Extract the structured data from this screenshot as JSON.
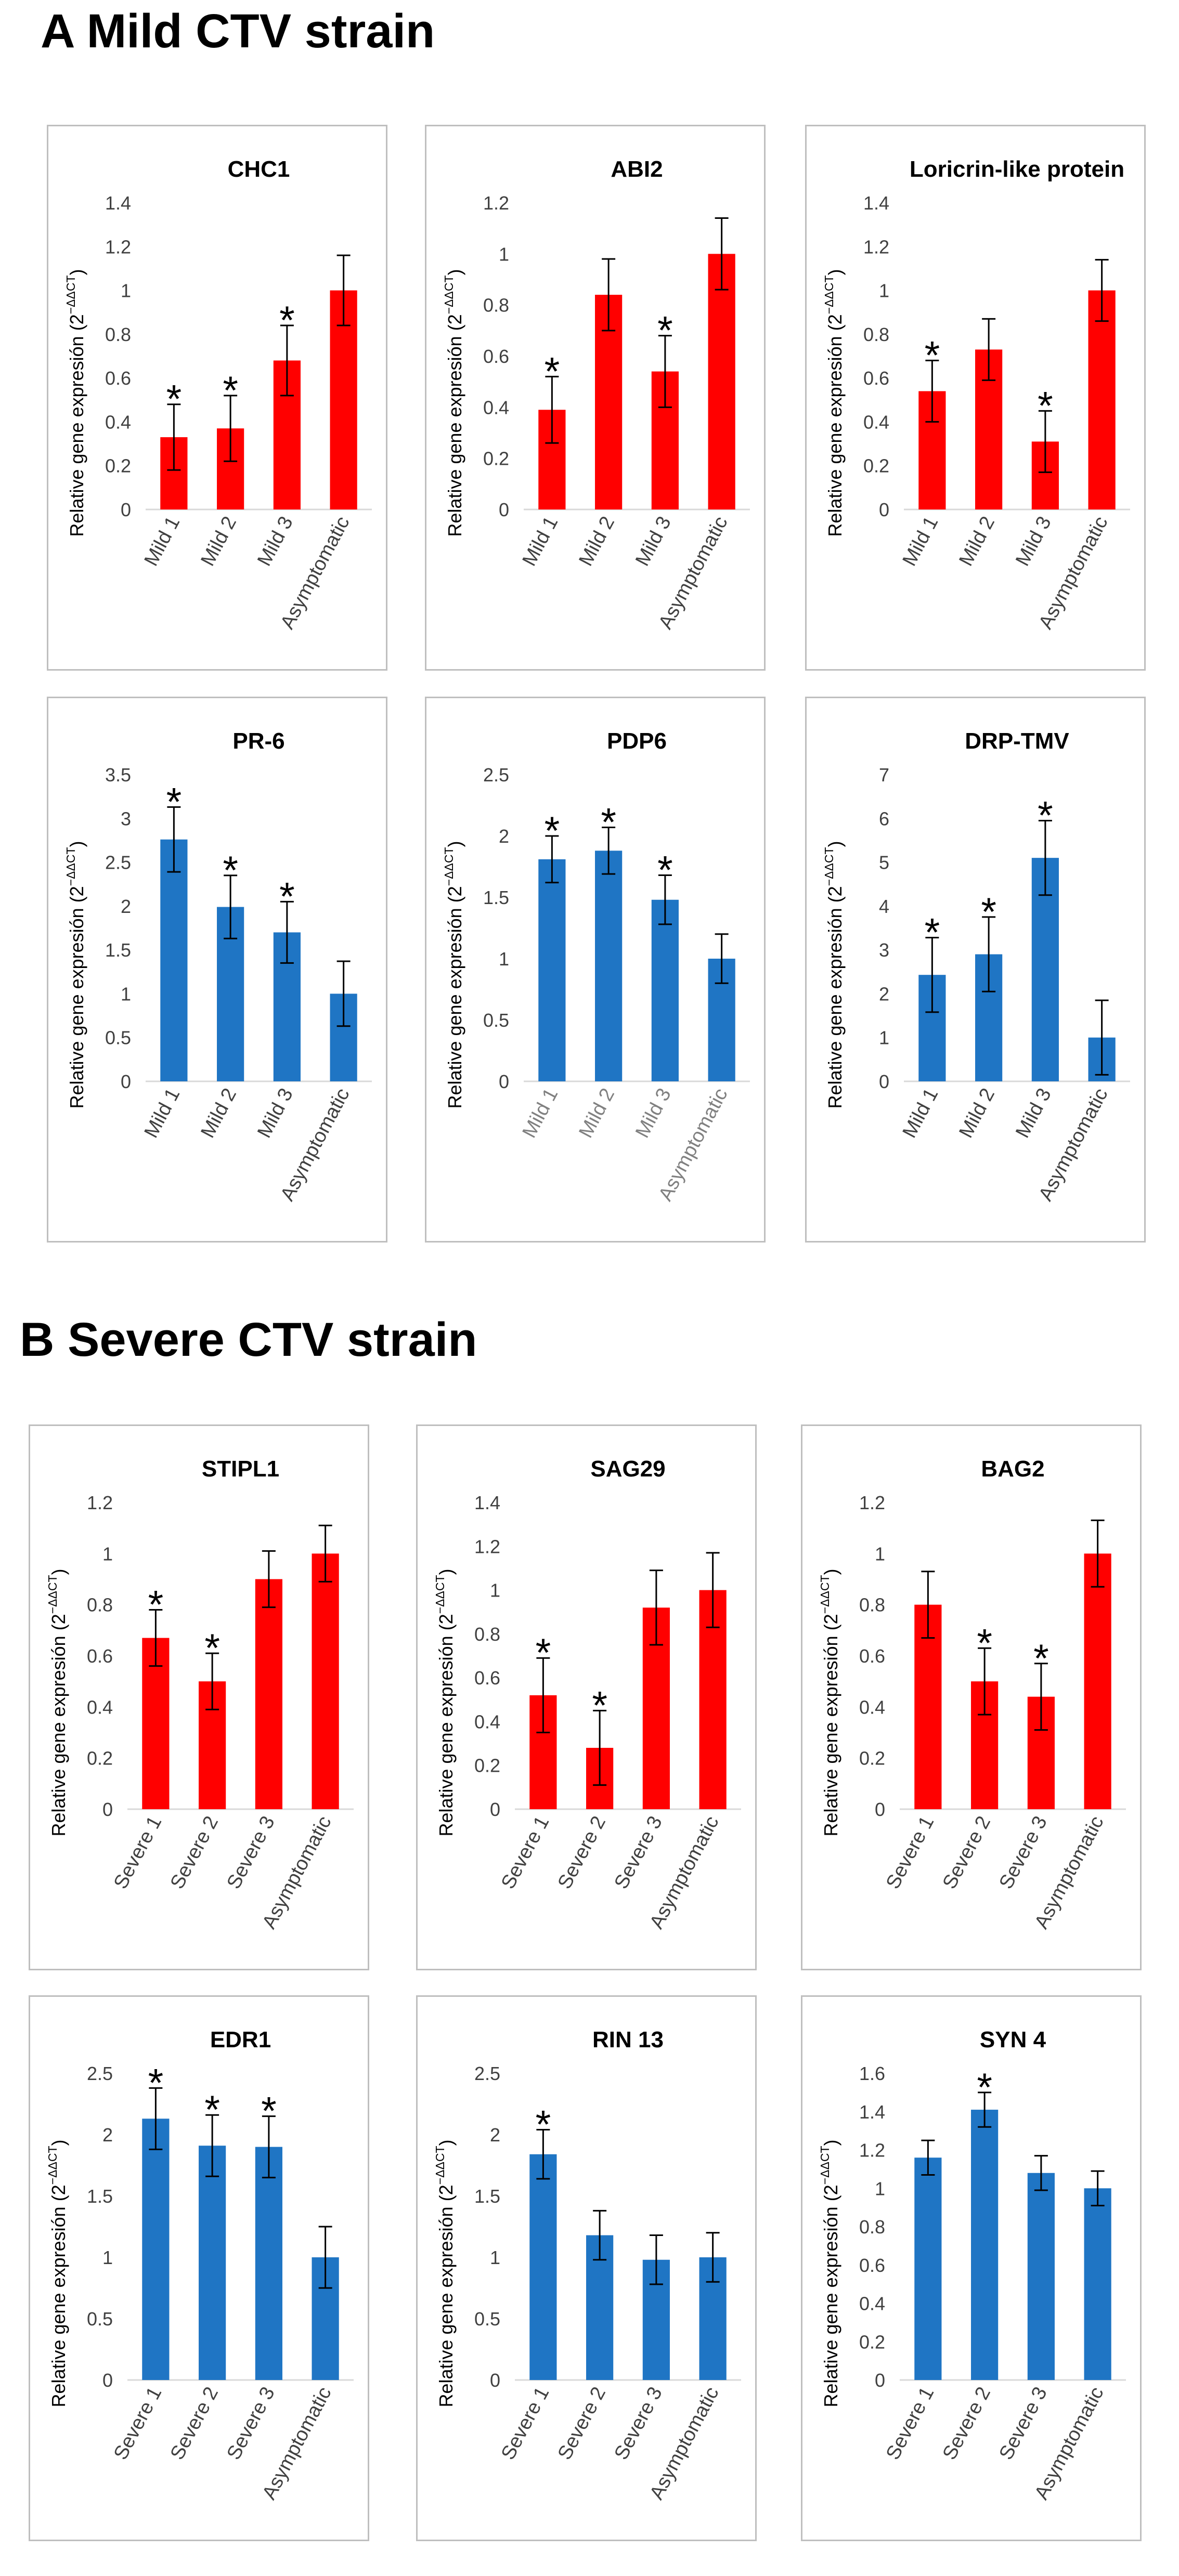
{
  "sections": {
    "a": {
      "label": "A",
      "title": "Mild CTV strain"
    },
    "b": {
      "label": "B",
      "title": "Severe CTV strain"
    }
  },
  "colors": {
    "red": "#ff0000",
    "blue": "#1f75c4",
    "axis": "#d9d9d9",
    "frame": "#bfbfbf"
  },
  "y_axis_label": "Relative gene expresión (2",
  "y_axis_superscript": "−ΔΔCT",
  "significance_marker": "*",
  "chart_data": [
    {
      "type": "bar",
      "title": "CHC1",
      "color": "red",
      "categories": [
        "Mild 1",
        "Mild 2",
        "Mild 3",
        "Asymptomatic"
      ],
      "values": [
        0.33,
        0.37,
        0.68,
        1.0
      ],
      "errors": [
        0.15,
        0.15,
        0.16,
        0.16
      ],
      "significant": [
        true,
        true,
        true,
        false
      ],
      "ylim": [
        0,
        1.4
      ],
      "yticks": [
        "0",
        "0.2",
        "0.4",
        "0.6",
        "0.8",
        "1",
        "1.2",
        "1.4"
      ]
    },
    {
      "type": "bar",
      "title": "ABI2",
      "color": "red",
      "categories": [
        "Mild 1",
        "Mild 2",
        "Mild 3",
        "Asymptomatic"
      ],
      "values": [
        0.39,
        0.84,
        0.54,
        1.0
      ],
      "errors": [
        0.13,
        0.14,
        0.14,
        0.14
      ],
      "significant": [
        true,
        false,
        true,
        false
      ],
      "ylim": [
        0,
        1.2
      ],
      "yticks": [
        "0",
        "0.2",
        "0.4",
        "0.6",
        "0.8",
        "1",
        "1.2"
      ]
    },
    {
      "type": "bar",
      "title": "Loricrin-like protein",
      "color": "red",
      "categories": [
        "Mild 1",
        "Mild 2",
        "Mild 3",
        "Asymptomatic"
      ],
      "values": [
        0.54,
        0.73,
        0.31,
        1.0
      ],
      "errors": [
        0.14,
        0.14,
        0.14,
        0.14
      ],
      "significant": [
        true,
        false,
        true,
        false
      ],
      "ylim": [
        0,
        1.4
      ],
      "yticks": [
        "0",
        "0.2",
        "0.4",
        "0.6",
        "0.8",
        "1",
        "1.2",
        "1.4"
      ]
    },
    {
      "type": "bar",
      "title": "PR-6",
      "color": "blue",
      "categories": [
        "Mild 1",
        "Mild 2",
        "Mild 3",
        "Asymptomatic"
      ],
      "values": [
        2.76,
        1.99,
        1.7,
        1.0
      ],
      "errors": [
        0.37,
        0.36,
        0.35,
        0.37
      ],
      "significant": [
        true,
        true,
        true,
        false
      ],
      "ylim": [
        0,
        3.5
      ],
      "yticks": [
        "0",
        "0.5",
        "1",
        "1.5",
        "2",
        "2.5",
        "3",
        "3.5"
      ]
    },
    {
      "type": "bar",
      "title": "PDP6",
      "color": "blue",
      "categories": [
        "Mild 1",
        "Mild 2",
        "Mild 3",
        "Asymptomatic"
      ],
      "values": [
        1.81,
        1.88,
        1.48,
        1.0
      ],
      "errors": [
        0.19,
        0.19,
        0.2,
        0.2
      ],
      "significant": [
        true,
        true,
        true,
        false
      ],
      "ylim": [
        0,
        2.5
      ],
      "yticks": [
        "0",
        "0.5",
        "1",
        "1.5",
        "2",
        "2.5"
      ],
      "tick_label_color": "#808080"
    },
    {
      "type": "bar",
      "title": "DRP-TMV",
      "color": "blue",
      "categories": [
        "Mild 1",
        "Mild 2",
        "Mild 3",
        "Asymptomatic"
      ],
      "values": [
        2.43,
        2.9,
        5.1,
        1.0
      ],
      "errors": [
        0.85,
        0.85,
        0.85,
        0.85
      ],
      "significant": [
        true,
        true,
        true,
        false
      ],
      "ylim": [
        0,
        7
      ],
      "yticks": [
        "0",
        "1",
        "2",
        "3",
        "4",
        "5",
        "6",
        "7"
      ]
    },
    {
      "type": "bar",
      "title": "STIPL1",
      "color": "red",
      "categories": [
        "Severe 1",
        "Severe 2",
        "Severe 3",
        "Asymptomatic"
      ],
      "values": [
        0.67,
        0.5,
        0.9,
        1.0
      ],
      "errors": [
        0.11,
        0.11,
        0.11,
        0.11
      ],
      "significant": [
        true,
        true,
        false,
        false
      ],
      "ylim": [
        0,
        1.2
      ],
      "yticks": [
        "0",
        "0.2",
        "0.4",
        "0.6",
        "0.8",
        "1",
        "1.2"
      ]
    },
    {
      "type": "bar",
      "title": "SAG29",
      "color": "red",
      "categories": [
        "Severe 1",
        "Severe 2",
        "Severe 3",
        "Asymptomatic"
      ],
      "values": [
        0.52,
        0.28,
        0.92,
        1.0
      ],
      "errors": [
        0.17,
        0.17,
        0.17,
        0.17
      ],
      "significant": [
        true,
        true,
        false,
        false
      ],
      "ylim": [
        0,
        1.4
      ],
      "yticks": [
        "0",
        "0.2",
        "0.4",
        "0.6",
        "0.8",
        "1",
        "1.2",
        "1.4"
      ]
    },
    {
      "type": "bar",
      "title": "BAG2",
      "color": "red",
      "categories": [
        "Severe 1",
        "Severe 2",
        "Severe 3",
        "Asymptomatic"
      ],
      "values": [
        0.8,
        0.5,
        0.44,
        1.0
      ],
      "errors": [
        0.13,
        0.13,
        0.13,
        0.13
      ],
      "significant": [
        false,
        true,
        true,
        false
      ],
      "ylim": [
        0,
        1.2
      ],
      "yticks": [
        "0",
        "0.2",
        "0.4",
        "0.6",
        "0.8",
        "1",
        "1.2"
      ]
    },
    {
      "type": "bar",
      "title": "EDR1",
      "color": "blue",
      "categories": [
        "Severe 1",
        "Severe 2",
        "Severe 3",
        "Asymptomatic"
      ],
      "values": [
        2.13,
        1.91,
        1.9,
        1.0
      ],
      "errors": [
        0.25,
        0.25,
        0.25,
        0.25
      ],
      "significant": [
        true,
        true,
        true,
        false
      ],
      "ylim": [
        0,
        2.5
      ],
      "yticks": [
        "0",
        "0.5",
        "1",
        "1.5",
        "2",
        "2.5"
      ]
    },
    {
      "type": "bar",
      "title": "RIN 13",
      "color": "blue",
      "categories": [
        "Severe 1",
        "Severe 2",
        "Severe 3",
        "Asymptomatic"
      ],
      "values": [
        1.84,
        1.18,
        0.98,
        1.0
      ],
      "errors": [
        0.2,
        0.2,
        0.2,
        0.2
      ],
      "significant": [
        true,
        false,
        false,
        false
      ],
      "ylim": [
        0,
        2.5
      ],
      "yticks": [
        "0",
        "0.5",
        "1",
        "1.5",
        "2",
        "2.5"
      ]
    },
    {
      "type": "bar",
      "title": "SYN 4",
      "color": "blue",
      "categories": [
        "Severe 1",
        "Severe 2",
        "Severe 3",
        "Asymptomatic"
      ],
      "values": [
        1.16,
        1.41,
        1.08,
        1.0
      ],
      "errors": [
        0.09,
        0.09,
        0.09,
        0.09
      ],
      "significant": [
        false,
        true,
        false,
        false
      ],
      "ylim": [
        0,
        1.6
      ],
      "yticks": [
        "0",
        "0.2",
        "0.4",
        "0.6",
        "0.8",
        "1",
        "1.2",
        "1.4",
        "1.6"
      ]
    }
  ]
}
